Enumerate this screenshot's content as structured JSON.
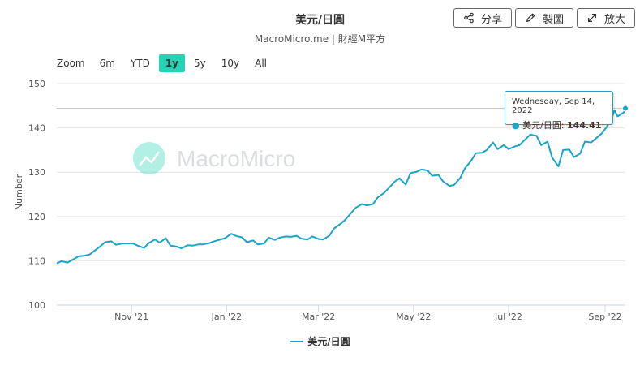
{
  "title": "美元/日圓",
  "subtitle": "MacroMicro.me | 財經M平方",
  "toolbar": {
    "share_label": "分享",
    "draw_label": "製圖",
    "expand_label": "放大"
  },
  "zoom": {
    "label": "Zoom",
    "options": [
      "6m",
      "YTD",
      "1y",
      "5y",
      "10y",
      "All"
    ],
    "active": "1y"
  },
  "watermark": "MacroMicro",
  "tooltip": {
    "date": "Wednesday, Sep 14, 2022",
    "series_name": "美元/日圓",
    "value": "144.41"
  },
  "colors": {
    "series": "#1aa4c8",
    "active_zoom": "#26d3b4"
  },
  "chart_data": {
    "type": "line",
    "ylabel": "Number",
    "ylim": [
      100,
      150
    ],
    "yticks": [
      100,
      110,
      120,
      130,
      140,
      150
    ],
    "xlim": [
      "2021-09-14",
      "2022-09-14"
    ],
    "xticks": [
      {
        "label": "Nov '21",
        "date": "2021-11-01"
      },
      {
        "label": "Jan '22",
        "date": "2022-01-01"
      },
      {
        "label": "Mar '22",
        "date": "2022-03-01"
      },
      {
        "label": "May '22",
        "date": "2022-05-01"
      },
      {
        "label": "Jul '22",
        "date": "2022-07-01"
      },
      {
        "label": "Sep '22",
        "date": "2022-09-01"
      }
    ],
    "grid": true,
    "legend_position": "bottom",
    "series": [
      {
        "name": "美元/日圓",
        "points": [
          [
            "2021-09-14",
            109.4
          ],
          [
            "2021-09-17",
            109.9
          ],
          [
            "2021-09-21",
            109.6
          ],
          [
            "2021-09-24",
            110.2
          ],
          [
            "2021-09-28",
            111.0
          ],
          [
            "2021-10-01",
            111.1
          ],
          [
            "2021-10-05",
            111.4
          ],
          [
            "2021-10-08",
            112.2
          ],
          [
            "2021-10-12",
            113.3
          ],
          [
            "2021-10-15",
            114.2
          ],
          [
            "2021-10-19",
            114.4
          ],
          [
            "2021-10-22",
            113.6
          ],
          [
            "2021-10-26",
            113.9
          ],
          [
            "2021-10-29",
            113.9
          ],
          [
            "2021-11-02",
            113.9
          ],
          [
            "2021-11-05",
            113.4
          ],
          [
            "2021-11-09",
            112.9
          ],
          [
            "2021-11-12",
            114.0
          ],
          [
            "2021-11-16",
            114.8
          ],
          [
            "2021-11-19",
            114.1
          ],
          [
            "2021-11-23",
            115.1
          ],
          [
            "2021-11-26",
            113.4
          ],
          [
            "2021-11-30",
            113.2
          ],
          [
            "2021-12-03",
            112.8
          ],
          [
            "2021-12-07",
            113.5
          ],
          [
            "2021-12-10",
            113.4
          ],
          [
            "2021-12-14",
            113.7
          ],
          [
            "2021-12-17",
            113.7
          ],
          [
            "2021-12-21",
            114.0
          ],
          [
            "2021-12-24",
            114.4
          ],
          [
            "2021-12-28",
            114.8
          ],
          [
            "2021-12-31",
            115.1
          ],
          [
            "2022-01-04",
            116.1
          ],
          [
            "2022-01-07",
            115.6
          ],
          [
            "2022-01-11",
            115.3
          ],
          [
            "2022-01-14",
            114.2
          ],
          [
            "2022-01-18",
            114.6
          ],
          [
            "2022-01-21",
            113.7
          ],
          [
            "2022-01-25",
            113.9
          ],
          [
            "2022-01-28",
            115.2
          ],
          [
            "2022-02-01",
            114.7
          ],
          [
            "2022-02-04",
            115.2
          ],
          [
            "2022-02-08",
            115.5
          ],
          [
            "2022-02-11",
            115.4
          ],
          [
            "2022-02-15",
            115.6
          ],
          [
            "2022-02-18",
            115.0
          ],
          [
            "2022-02-22",
            114.8
          ],
          [
            "2022-02-25",
            115.5
          ],
          [
            "2022-03-01",
            114.9
          ],
          [
            "2022-03-04",
            114.8
          ],
          [
            "2022-03-08",
            115.7
          ],
          [
            "2022-03-11",
            117.3
          ],
          [
            "2022-03-15",
            118.3
          ],
          [
            "2022-03-18",
            119.2
          ],
          [
            "2022-03-22",
            120.8
          ],
          [
            "2022-03-25",
            122.0
          ],
          [
            "2022-03-29",
            122.8
          ],
          [
            "2022-04-01",
            122.5
          ],
          [
            "2022-04-05",
            122.8
          ],
          [
            "2022-04-08",
            124.3
          ],
          [
            "2022-04-12",
            125.3
          ],
          [
            "2022-04-15",
            126.4
          ],
          [
            "2022-04-19",
            127.9
          ],
          [
            "2022-04-22",
            128.6
          ],
          [
            "2022-04-26",
            127.2
          ],
          [
            "2022-04-29",
            129.8
          ],
          [
            "2022-05-03",
            130.1
          ],
          [
            "2022-05-06",
            130.6
          ],
          [
            "2022-05-10",
            130.4
          ],
          [
            "2022-05-13",
            129.2
          ],
          [
            "2022-05-17",
            129.4
          ],
          [
            "2022-05-20",
            127.9
          ],
          [
            "2022-05-24",
            126.9
          ],
          [
            "2022-05-27",
            127.1
          ],
          [
            "2022-05-31",
            128.7
          ],
          [
            "2022-06-03",
            130.9
          ],
          [
            "2022-06-07",
            132.6
          ],
          [
            "2022-06-10",
            134.3
          ],
          [
            "2022-06-14",
            134.4
          ],
          [
            "2022-06-17",
            135.0
          ],
          [
            "2022-06-21",
            136.7
          ],
          [
            "2022-06-24",
            135.2
          ],
          [
            "2022-06-28",
            136.1
          ],
          [
            "2022-07-01",
            135.2
          ],
          [
            "2022-07-05",
            135.8
          ],
          [
            "2022-07-08",
            136.1
          ],
          [
            "2022-07-12",
            137.5
          ],
          [
            "2022-07-15",
            138.5
          ],
          [
            "2022-07-19",
            138.2
          ],
          [
            "2022-07-22",
            136.1
          ],
          [
            "2022-07-26",
            136.9
          ],
          [
            "2022-07-29",
            133.3
          ],
          [
            "2022-08-02",
            131.3
          ],
          [
            "2022-08-05",
            135.0
          ],
          [
            "2022-08-09",
            135.1
          ],
          [
            "2022-08-12",
            133.4
          ],
          [
            "2022-08-16",
            134.2
          ],
          [
            "2022-08-19",
            136.9
          ],
          [
            "2022-08-23",
            136.7
          ],
          [
            "2022-08-26",
            137.6
          ],
          [
            "2022-08-30",
            138.8
          ],
          [
            "2022-09-02",
            140.2
          ],
          [
            "2022-09-06",
            142.9
          ],
          [
            "2022-09-07",
            144.0
          ],
          [
            "2022-09-09",
            142.6
          ],
          [
            "2022-09-13",
            143.5
          ],
          [
            "2022-09-14",
            144.41
          ]
        ]
      }
    ]
  }
}
